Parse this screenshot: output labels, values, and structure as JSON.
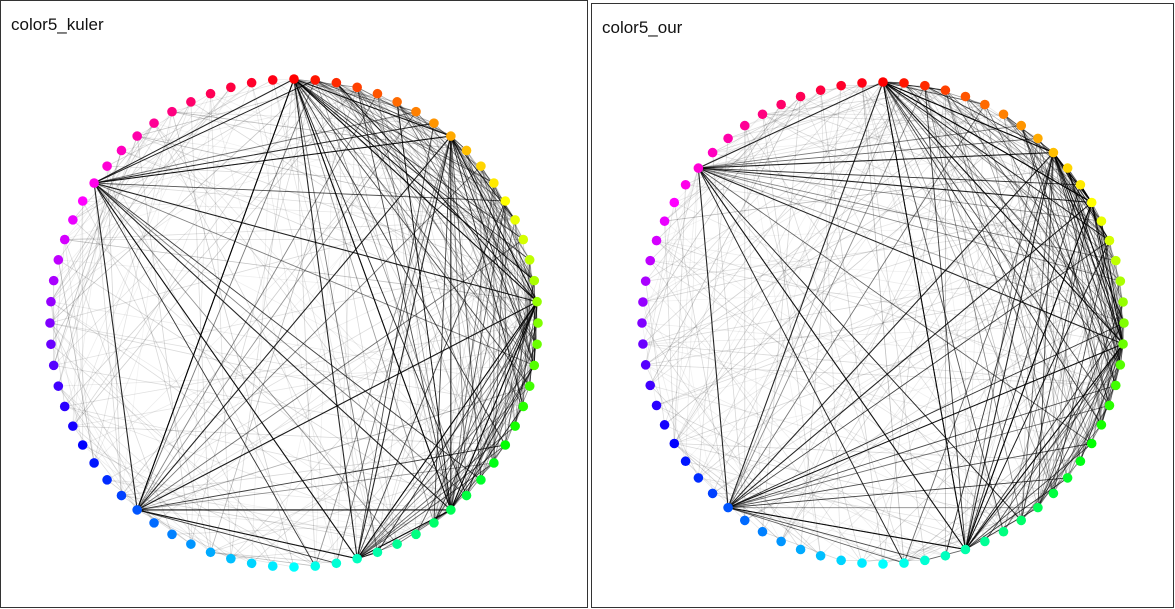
{
  "panels": [
    {
      "title": "color5_kuler"
    },
    {
      "title": "color5_our"
    }
  ]
}
